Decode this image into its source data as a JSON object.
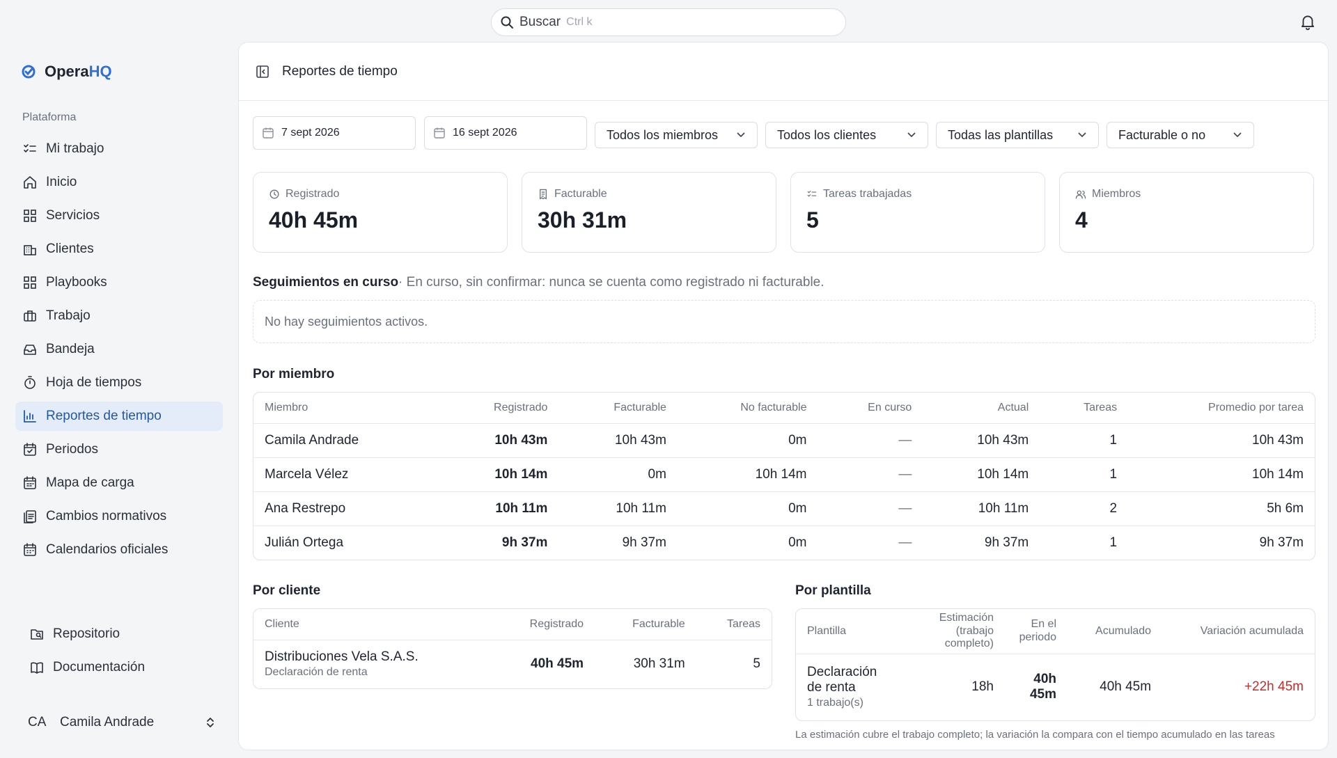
{
  "search": {
    "label": "Buscar",
    "shortcut": "Ctrl k"
  },
  "brand": {
    "name_part1": "Opera",
    "name_part2": "HQ",
    "accent": "#2f6fd1"
  },
  "sidebar": {
    "section_label": "Plataforma",
    "items": [
      {
        "label": "Mi trabajo",
        "icon": "list-check-icon"
      },
      {
        "label": "Inicio",
        "icon": "home-icon"
      },
      {
        "label": "Servicios",
        "icon": "grid-icon"
      },
      {
        "label": "Clientes",
        "icon": "building-icon"
      },
      {
        "label": "Playbooks",
        "icon": "grid-icon"
      },
      {
        "label": "Trabajo",
        "icon": "briefcase-icon"
      },
      {
        "label": "Bandeja",
        "icon": "inbox-icon"
      },
      {
        "label": "Hoja de tiempos",
        "icon": "stopwatch-icon"
      },
      {
        "label": "Reportes de tiempo",
        "icon": "bar-chart-icon",
        "active": true
      },
      {
        "label": "Periodos",
        "icon": "calendar-check-icon"
      },
      {
        "label": "Mapa de carga",
        "icon": "calendar-grid-icon"
      },
      {
        "label": "Cambios normativos",
        "icon": "document-stack-icon"
      },
      {
        "label": "Calendarios oficiales",
        "icon": "calendar-icon"
      }
    ],
    "bottom": [
      {
        "label": "Repositorio",
        "icon": "folder-search-icon"
      },
      {
        "label": "Documentación",
        "icon": "book-icon"
      }
    ],
    "user": {
      "initials": "CA",
      "name": "Camila Andrade"
    }
  },
  "page": {
    "title": "Reportes de tiempo"
  },
  "filters": {
    "date_from": "7 sept 2026",
    "date_to": "16 sept 2026",
    "members": "Todos los miembros",
    "clients": "Todos los clientes",
    "templates": "Todas las plantillas",
    "billable": "Facturable o no"
  },
  "stats": [
    {
      "label": "Registrado",
      "value": "40h 45m",
      "icon": "clock-icon"
    },
    {
      "label": "Facturable",
      "value": "30h 31m",
      "icon": "receipt-icon"
    },
    {
      "label": "Tareas trabajadas",
      "value": "5",
      "icon": "list-check-icon"
    },
    {
      "label": "Miembros",
      "value": "4",
      "icon": "users-icon"
    }
  ],
  "in_progress": {
    "title": "Seguimientos en curso",
    "note": "· En curso, sin confirmar: nunca se cuenta como registrado ni facturable.",
    "empty": "No hay seguimientos activos."
  },
  "by_member": {
    "title": "Por miembro",
    "columns": [
      "Miembro",
      "Registrado",
      "Facturable",
      "No facturable",
      "En curso",
      "Actual",
      "Tareas",
      "Promedio por tarea"
    ],
    "rows": [
      [
        "Camila Andrade",
        "10h 43m",
        "10h 43m",
        "0m",
        "—",
        "10h 43m",
        "1",
        "10h 43m"
      ],
      [
        "Marcela Vélez",
        "10h 14m",
        "0m",
        "10h 14m",
        "—",
        "10h 14m",
        "1",
        "10h 14m"
      ],
      [
        "Ana Restrepo",
        "10h 11m",
        "10h 11m",
        "0m",
        "—",
        "10h 11m",
        "2",
        "5h 6m"
      ],
      [
        "Julián Ortega",
        "9h 37m",
        "9h 37m",
        "0m",
        "—",
        "9h 37m",
        "1",
        "9h 37m"
      ]
    ]
  },
  "by_client": {
    "title": "Por cliente",
    "columns": [
      "Cliente",
      "Registrado",
      "Facturable",
      "Tareas"
    ],
    "rows": [
      {
        "name": "Distribuciones Vela S.A.S.",
        "sub": "Declaración de renta",
        "registered": "40h 45m",
        "billable": "30h 31m",
        "tasks": "5"
      }
    ]
  },
  "by_template": {
    "title": "Por plantilla",
    "columns": [
      "Plantilla",
      "Estimación (trabajo completo)",
      "En el periodo",
      "Acumulado",
      "Variación acumulada"
    ],
    "rows": [
      {
        "name": "Declaración de renta",
        "sub": "1 trabajo(s)",
        "estimate": "18h",
        "in_period": "40h 45m",
        "accumulated": "40h 45m",
        "variance": "+22h 45m"
      }
    ],
    "footnote": "La estimación cubre el trabajo completo; la variación la compara con el tiempo acumulado en las tareas"
  }
}
